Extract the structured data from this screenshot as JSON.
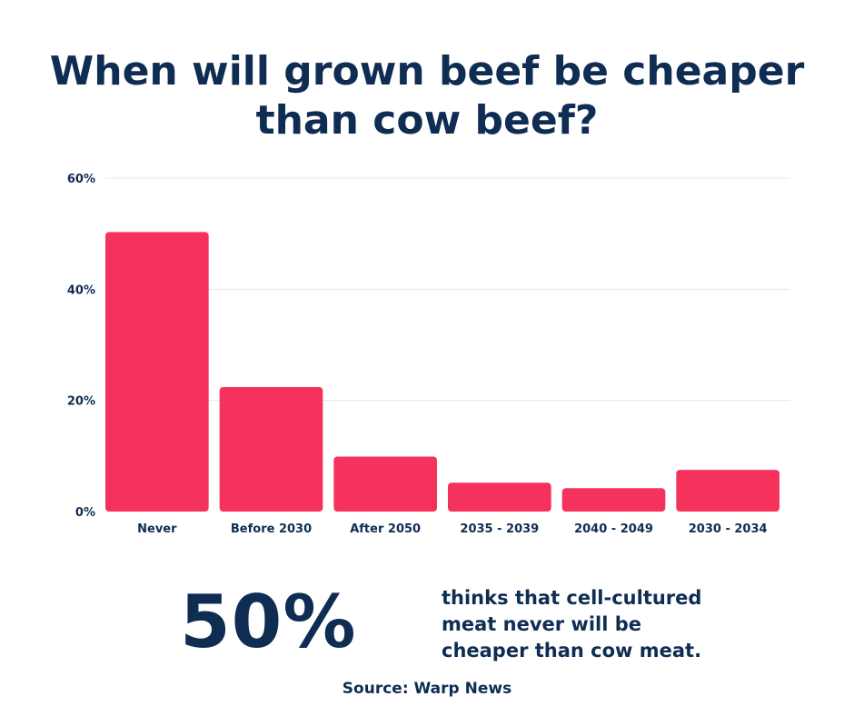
{
  "title_lines": [
    "When will grown beef be cheaper",
    "than cow beef?"
  ],
  "chart_data": {
    "type": "bar",
    "title": "When will grown beef be cheaper than cow beef?",
    "categories": [
      "Never",
      "Before 2030",
      "After 2050",
      "2035 - 2039",
      "2040 - 2049",
      "2030 - 2034"
    ],
    "values": [
      50.3,
      22.4,
      9.9,
      5.2,
      4.2,
      7.5
    ],
    "unit": "%",
    "ylim": [
      0,
      60
    ],
    "yticks": [
      0,
      20,
      40,
      60
    ],
    "ytick_labels": [
      "0%",
      "20%",
      "40%",
      "60%"
    ],
    "xlabel": "",
    "ylabel": "",
    "grid": true,
    "bar_color": "#f5325c",
    "grid_color": "#e6e6e6"
  },
  "highlight": {
    "value": "50%",
    "text_lines": [
      "thinks that cell-cultured",
      "meat never will be",
      "cheaper than cow meat."
    ]
  },
  "source": "Source: Warp News"
}
